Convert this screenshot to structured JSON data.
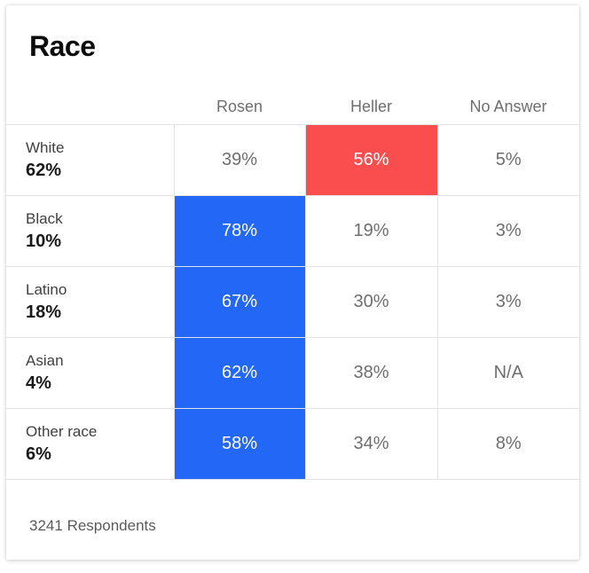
{
  "title": "Race",
  "footer": {
    "count": "3241",
    "label": "Respondents"
  },
  "colors": {
    "rosen_win": "#2267f5",
    "heller_win": "#fa4e4e"
  },
  "chart_data": {
    "type": "table",
    "title": "Race",
    "columns": [
      "Rosen",
      "Heller",
      "No Answer"
    ],
    "rows": [
      {
        "group": "White",
        "share": "62%",
        "values": [
          "39%",
          "56%",
          "5%"
        ],
        "winner": "Heller"
      },
      {
        "group": "Black",
        "share": "10%",
        "values": [
          "78%",
          "19%",
          "3%"
        ],
        "winner": "Rosen"
      },
      {
        "group": "Latino",
        "share": "18%",
        "values": [
          "67%",
          "30%",
          "3%"
        ],
        "winner": "Rosen"
      },
      {
        "group": "Asian",
        "share": "4%",
        "values": [
          "62%",
          "38%",
          "N/A"
        ],
        "winner": "Rosen"
      },
      {
        "group": "Other race",
        "share": "6%",
        "values": [
          "58%",
          "34%",
          "8%"
        ],
        "winner": "Rosen"
      }
    ],
    "respondents": 3241
  }
}
